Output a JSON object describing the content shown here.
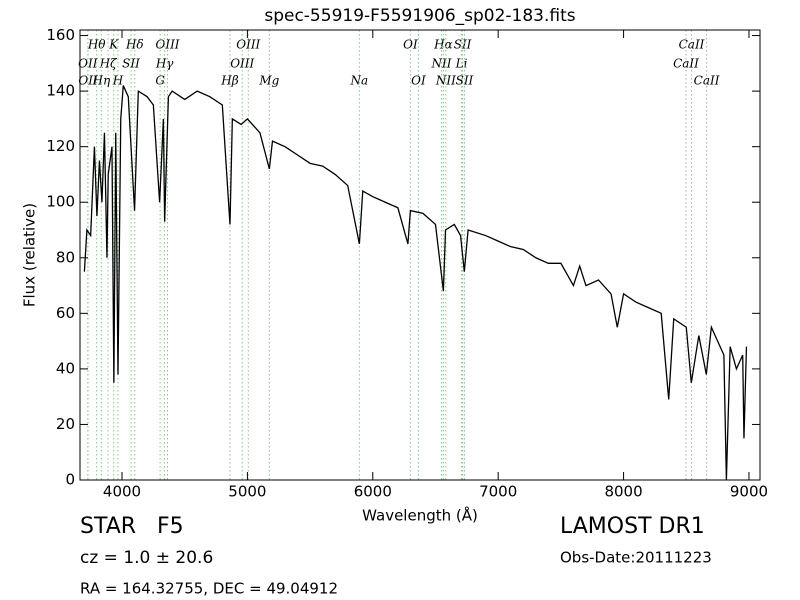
{
  "chart_data": {
    "type": "line",
    "title": "spec-55919-F5591906_sp02-183.fits",
    "x_label": "Wavelength (Å)",
    "y_label": "Flux (relative)",
    "xlim": [
      3665,
      9088
    ],
    "ylim": [
      0,
      162
    ],
    "xticks": [
      4000,
      5000,
      6000,
      7000,
      8000,
      9000
    ],
    "yticks": [
      0,
      20,
      40,
      60,
      80,
      100,
      120,
      140,
      160
    ],
    "color": "#000000",
    "line_color": "#88c888",
    "x": [
      3700,
      3720,
      3750,
      3780,
      3800,
      3820,
      3840,
      3860,
      3880,
      3890,
      3920,
      3935,
      3950,
      3968,
      3990,
      4010,
      4050,
      4100,
      4130,
      4200,
      4250,
      4300,
      4330,
      4340,
      4370,
      4400,
      4500,
      4600,
      4700,
      4800,
      4861,
      4880,
      4950,
      5000,
      5100,
      5175,
      5200,
      5300,
      5400,
      5500,
      5600,
      5700,
      5800,
      5893,
      5920,
      6000,
      6100,
      6200,
      6280,
      6300,
      6400,
      6500,
      6563,
      6580,
      6650,
      6700,
      6730,
      6760,
      6900,
      7000,
      7100,
      7200,
      7300,
      7400,
      7500,
      7600,
      7650,
      7700,
      7800,
      7900,
      7950,
      8000,
      8100,
      8200,
      8300,
      8360,
      8400,
      8500,
      8540,
      8600,
      8660,
      8700,
      8750,
      8800,
      8820,
      8850,
      8900,
      8950,
      8960,
      8980
    ],
    "values": [
      75,
      90,
      88,
      120,
      95,
      115,
      100,
      125,
      80,
      110,
      120,
      35,
      125,
      38,
      130,
      142,
      138,
      97,
      140,
      138,
      135,
      100,
      130,
      93,
      138,
      140,
      137,
      140,
      138,
      135,
      92,
      130,
      128,
      130,
      125,
      112,
      122,
      120,
      117,
      114,
      113,
      110,
      106,
      85,
      104,
      102,
      100,
      98,
      85,
      97,
      96,
      92,
      68,
      90,
      92,
      88,
      75,
      90,
      88,
      86,
      84,
      83,
      80,
      78,
      78,
      70,
      77,
      70,
      72,
      67,
      55,
      67,
      64,
      62,
      60,
      29,
      58,
      55,
      35,
      52,
      38,
      55,
      50,
      45,
      0,
      48,
      40,
      45,
      15,
      48
    ],
    "line_labels": [
      [
        {
          "label": "Hθ",
          "wavelength": 3798
        },
        {
          "label": "K",
          "wavelength": 3934
        },
        {
          "label": "Hδ",
          "wavelength": 4102
        },
        {
          "label": "OIII",
          "wavelength": 4363
        },
        {
          "label": "OIII",
          "wavelength": 5007
        },
        {
          "label": "OI",
          "wavelength": 6300
        },
        {
          "label": "Hα",
          "wavelength": 6563
        },
        {
          "label": "SII",
          "wavelength": 6716
        },
        {
          "label": "CaII",
          "wavelength": 8542
        }
      ],
      [
        {
          "label": "OII",
          "wavelength": 3727
        },
        {
          "label": "Hζ",
          "wavelength": 3889
        },
        {
          "label": "SII",
          "wavelength": 4072
        },
        {
          "label": "Hγ",
          "wavelength": 4340
        },
        {
          "label": "OIII",
          "wavelength": 4959
        },
        {
          "label": "NII",
          "wavelength": 6548
        },
        {
          "label": "Li",
          "wavelength": 6708
        },
        {
          "label": "CaII",
          "wavelength": 8498
        }
      ],
      [
        {
          "label": "OII",
          "wavelength": 3729
        },
        {
          "label": "Hη",
          "wavelength": 3835
        },
        {
          "label": "H",
          "wavelength": 3968
        },
        {
          "label": "G",
          "wavelength": 4304
        },
        {
          "label": "Hβ",
          "wavelength": 4861
        },
        {
          "label": "Mg",
          "wavelength": 5175
        },
        {
          "label": "Na",
          "wavelength": 5893
        },
        {
          "label": "OI",
          "wavelength": 6364
        },
        {
          "label": "NII",
          "wavelength": 6583
        },
        {
          "label": "SII",
          "wavelength": 6731
        },
        {
          "label": "CaII",
          "wavelength": 8662
        }
      ]
    ]
  },
  "footer": {
    "object": "STAR   F5",
    "cz": "cz = 1.0 ± 20.6",
    "coords": "RA = 164.32755, DEC = 49.04912",
    "survey": "LAMOST DR1",
    "obs_date": "Obs-Date:20111223"
  }
}
